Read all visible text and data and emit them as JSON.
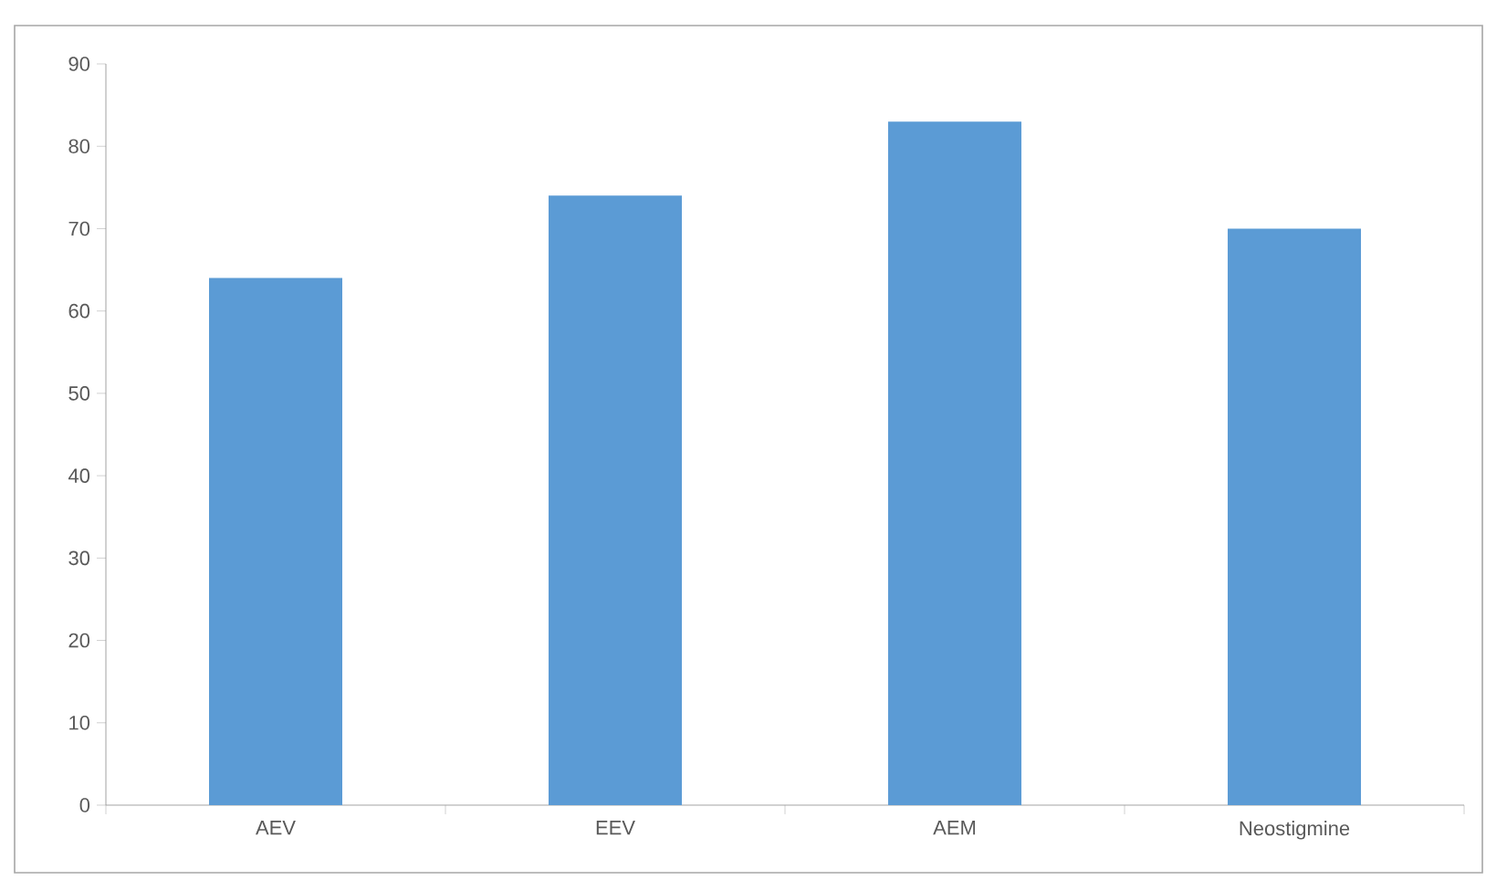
{
  "chart_data": {
    "type": "bar",
    "categories": [
      "AEV",
      "EEV",
      "AEM",
      "Neostigmine"
    ],
    "values": [
      64,
      74,
      83,
      70
    ],
    "color": "#5b9bd5",
    "ylim": [
      0,
      90
    ],
    "yticks": [
      0,
      10,
      20,
      30,
      40,
      50,
      60,
      70,
      80,
      90
    ],
    "grid": false
  }
}
